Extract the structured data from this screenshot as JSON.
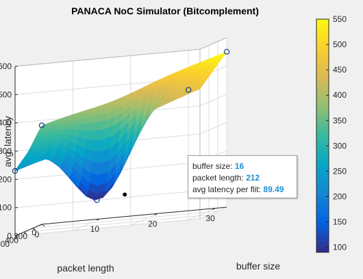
{
  "chart_data": {
    "type": "surface",
    "title": "PANACA NoC Simulator (Bitcomplement)",
    "xlabel": "buffer size",
    "ylabel": "packet length",
    "zlabel": "avg. latency",
    "xlim": [
      0,
      32
    ],
    "ylim": [
      0,
      600
    ],
    "zlim": [
      0,
      600
    ],
    "xticks": [
      "0",
      "10",
      "20",
      "30"
    ],
    "yticks": [
      "0",
      "200",
      "400",
      "600"
    ],
    "zticks": [
      "0",
      "100",
      "200",
      "300",
      "400",
      "500",
      "600"
    ],
    "grid": true,
    "sample_points": [
      {
        "buffer_size": 0,
        "packet_length": 600,
        "avg_latency": 230
      },
      {
        "buffer_size": 0,
        "packet_length": 0,
        "avg_latency": 350
      },
      {
        "buffer_size": 12,
        "packet_length": 320,
        "avg_latency": 85
      },
      {
        "buffer_size": 30,
        "packet_length": 600,
        "avg_latency": 460
      },
      {
        "buffer_size": 32,
        "packet_length": 0,
        "avg_latency": 550
      },
      {
        "buffer_size": 16,
        "packet_length": 212,
        "avg_latency": 89.49
      }
    ],
    "colorbar": {
      "range": [
        90,
        550
      ],
      "ticks": [
        "100",
        "150",
        "200",
        "250",
        "300",
        "350",
        "400",
        "450",
        "500",
        "550"
      ],
      "colormap": [
        "#352a87",
        "#0363e1",
        "#1485d4",
        "#06a7c6",
        "#38b99e",
        "#92bf73",
        "#d9ba56",
        "#fcce2e",
        "#f9fb0e"
      ]
    },
    "datatip": {
      "label1": "buffer size:",
      "value1": "16",
      "label2": "packet length:",
      "value2": "212",
      "label3": "avg latency per flit:",
      "value3": "89.49"
    }
  }
}
